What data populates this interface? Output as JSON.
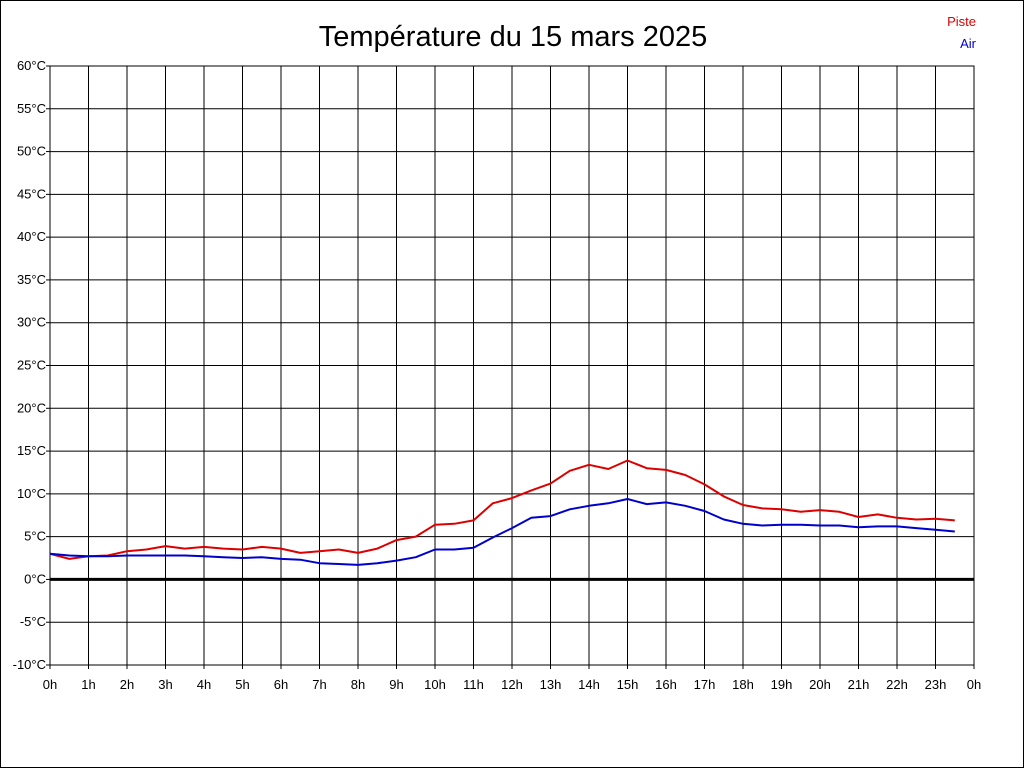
{
  "chart_data": {
    "type": "line",
    "title": "Température du 15 mars 2025",
    "xlabel": "",
    "ylabel": "",
    "x_ticks": [
      "0h",
      "1h",
      "2h",
      "3h",
      "4h",
      "5h",
      "6h",
      "7h",
      "8h",
      "9h",
      "10h",
      "11h",
      "12h",
      "13h",
      "14h",
      "15h",
      "16h",
      "17h",
      "18h",
      "19h",
      "20h",
      "21h",
      "22h",
      "23h",
      "0h"
    ],
    "y_ticks": [
      "60°C",
      "55°C",
      "50°C",
      "45°C",
      "40°C",
      "35°C",
      "30°C",
      "25°C",
      "20°C",
      "15°C",
      "10°C",
      "5°C",
      "0°C",
      "-5°C",
      "-10°C"
    ],
    "ylim": [
      -10,
      60
    ],
    "xlim": [
      0,
      24
    ],
    "grid": true,
    "legend_position": "top-right",
    "x": [
      0,
      0.5,
      1,
      1.5,
      2,
      2.5,
      3,
      3.5,
      4,
      4.5,
      5,
      5.5,
      6,
      6.5,
      7,
      7.5,
      8,
      8.5,
      9,
      9.5,
      10,
      10.5,
      11,
      11.5,
      12,
      12.5,
      13,
      13.5,
      14,
      14.5,
      15,
      15.5,
      16,
      16.5,
      17,
      17.5,
      18,
      18.5,
      19,
      19.5,
      20,
      20.5,
      21,
      21.5,
      22,
      22.5,
      23,
      23.5
    ],
    "series": [
      {
        "name": "Piste",
        "color": "#dd0000",
        "values": [
          3.0,
          2.4,
          2.7,
          2.8,
          3.3,
          3.5,
          3.9,
          3.6,
          3.8,
          3.6,
          3.5,
          3.8,
          3.6,
          3.1,
          3.3,
          3.5,
          3.1,
          3.6,
          4.6,
          5.0,
          6.4,
          6.5,
          6.9,
          8.9,
          9.5,
          10.4,
          11.2,
          12.7,
          13.4,
          12.9,
          13.9,
          13.0,
          12.8,
          12.2,
          11.1,
          9.7,
          8.7,
          8.3,
          8.2,
          7.9,
          8.1,
          7.9,
          7.3,
          7.6,
          7.2,
          7.0,
          7.1,
          6.9
        ]
      },
      {
        "name": "Air",
        "color": "#0000cc",
        "values": [
          3.0,
          2.8,
          2.7,
          2.7,
          2.8,
          2.8,
          2.8,
          2.8,
          2.7,
          2.6,
          2.5,
          2.6,
          2.4,
          2.3,
          1.9,
          1.8,
          1.7,
          1.9,
          2.2,
          2.6,
          3.5,
          3.5,
          3.7,
          4.9,
          6.0,
          7.2,
          7.4,
          8.2,
          8.6,
          8.9,
          9.4,
          8.8,
          9.0,
          8.6,
          8.0,
          7.0,
          6.5,
          6.3,
          6.4,
          6.4,
          6.3,
          6.3,
          6.1,
          6.2,
          6.2,
          6.0,
          5.8,
          5.6
        ]
      }
    ],
    "reference_line": {
      "y": 0
    }
  }
}
